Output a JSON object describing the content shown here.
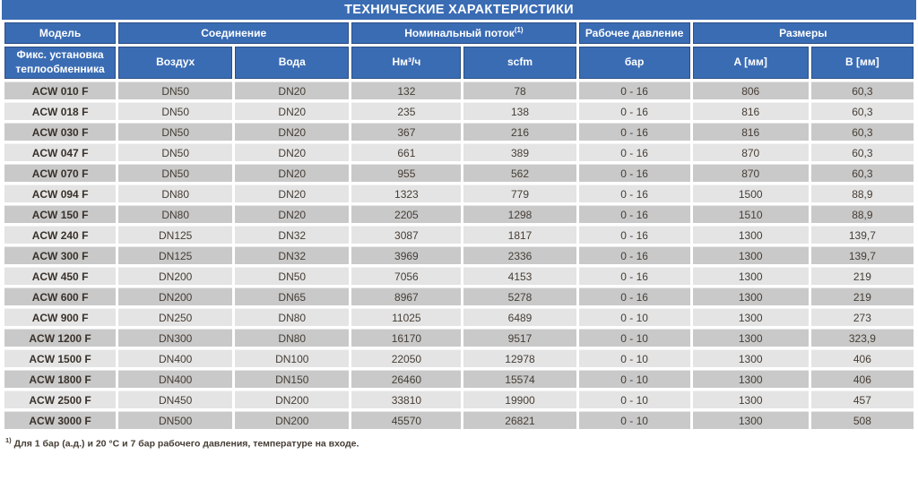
{
  "page": {
    "title": "ТЕХНИЧЕСКИЕ ХАРАКТЕРИСТИКИ"
  },
  "colors": {
    "header_blue": "#3a6cb4",
    "header_cell_border": "#2c4f86",
    "row_dark_gray": "#c9c9c9",
    "row_light_gray": "#e4e4e4",
    "text_dark": "#463d35",
    "title_text": "#ffffff"
  },
  "table": {
    "column_groups": [
      {
        "label": "Модель"
      },
      {
        "label": "Соединение"
      },
      {
        "label": "Номинальный поток",
        "superscript": "(1)"
      },
      {
        "label": "Рабочее давление"
      },
      {
        "label": "Размеры"
      }
    ],
    "subheaders": [
      "Фикс. установка теплообменника",
      "Воздух",
      "Вода",
      "Нм³/ч",
      "scfm",
      "бар",
      "A [мм]",
      "B [мм]"
    ],
    "rows": [
      [
        "ACW 010 F",
        "DN50",
        "DN20",
        "132",
        "78",
        "0 - 16",
        "806",
        "60,3"
      ],
      [
        "ACW 018 F",
        "DN50",
        "DN20",
        "235",
        "138",
        "0 - 16",
        "816",
        "60,3"
      ],
      [
        "ACW 030 F",
        "DN50",
        "DN20",
        "367",
        "216",
        "0 - 16",
        "816",
        "60,3"
      ],
      [
        "ACW 047 F",
        "DN50",
        "DN20",
        "661",
        "389",
        "0 - 16",
        "870",
        "60,3"
      ],
      [
        "ACW 070 F",
        "DN50",
        "DN20",
        "955",
        "562",
        "0 - 16",
        "870",
        "60,3"
      ],
      [
        "ACW 094 F",
        "DN80",
        "DN20",
        "1323",
        "779",
        "0 - 16",
        "1500",
        "88,9"
      ],
      [
        "ACW 150 F",
        "DN80",
        "DN20",
        "2205",
        "1298",
        "0 - 16",
        "1510",
        "88,9"
      ],
      [
        "ACW 240 F",
        "DN125",
        "DN32",
        "3087",
        "1817",
        "0 - 16",
        "1300",
        "139,7"
      ],
      [
        "ACW 300 F",
        "DN125",
        "DN32",
        "3969",
        "2336",
        "0 - 16",
        "1300",
        "139,7"
      ],
      [
        "ACW 450 F",
        "DN200",
        "DN50",
        "7056",
        "4153",
        "0 - 16",
        "1300",
        "219"
      ],
      [
        "ACW 600 F",
        "DN200",
        "DN65",
        "8967",
        "5278",
        "0 - 16",
        "1300",
        "219"
      ],
      [
        "ACW 900 F",
        "DN250",
        "DN80",
        "11025",
        "6489",
        "0 - 10",
        "1300",
        "273"
      ],
      [
        "ACW 1200 F",
        "DN300",
        "DN80",
        "16170",
        "9517",
        "0 - 10",
        "1300",
        "323,9"
      ],
      [
        "ACW 1500 F",
        "DN400",
        "DN100",
        "22050",
        "12978",
        "0 - 10",
        "1300",
        "406"
      ],
      [
        "ACW 1800 F",
        "DN400",
        "DN150",
        "26460",
        "15574",
        "0 - 10",
        "1300",
        "406"
      ],
      [
        "ACW 2500 F",
        "DN450",
        "DN200",
        "33810",
        "19900",
        "0 - 10",
        "1300",
        "457"
      ],
      [
        "ACW 3000 F",
        "DN500",
        "DN200",
        "45570",
        "26821",
        "0 - 10",
        "1300",
        "508"
      ]
    ]
  },
  "footnote": {
    "superscript": "1)",
    "text": " Для 1 бар (а.д.) и 20 °C и 7 бар рабочего давления, температуре на входе."
  }
}
